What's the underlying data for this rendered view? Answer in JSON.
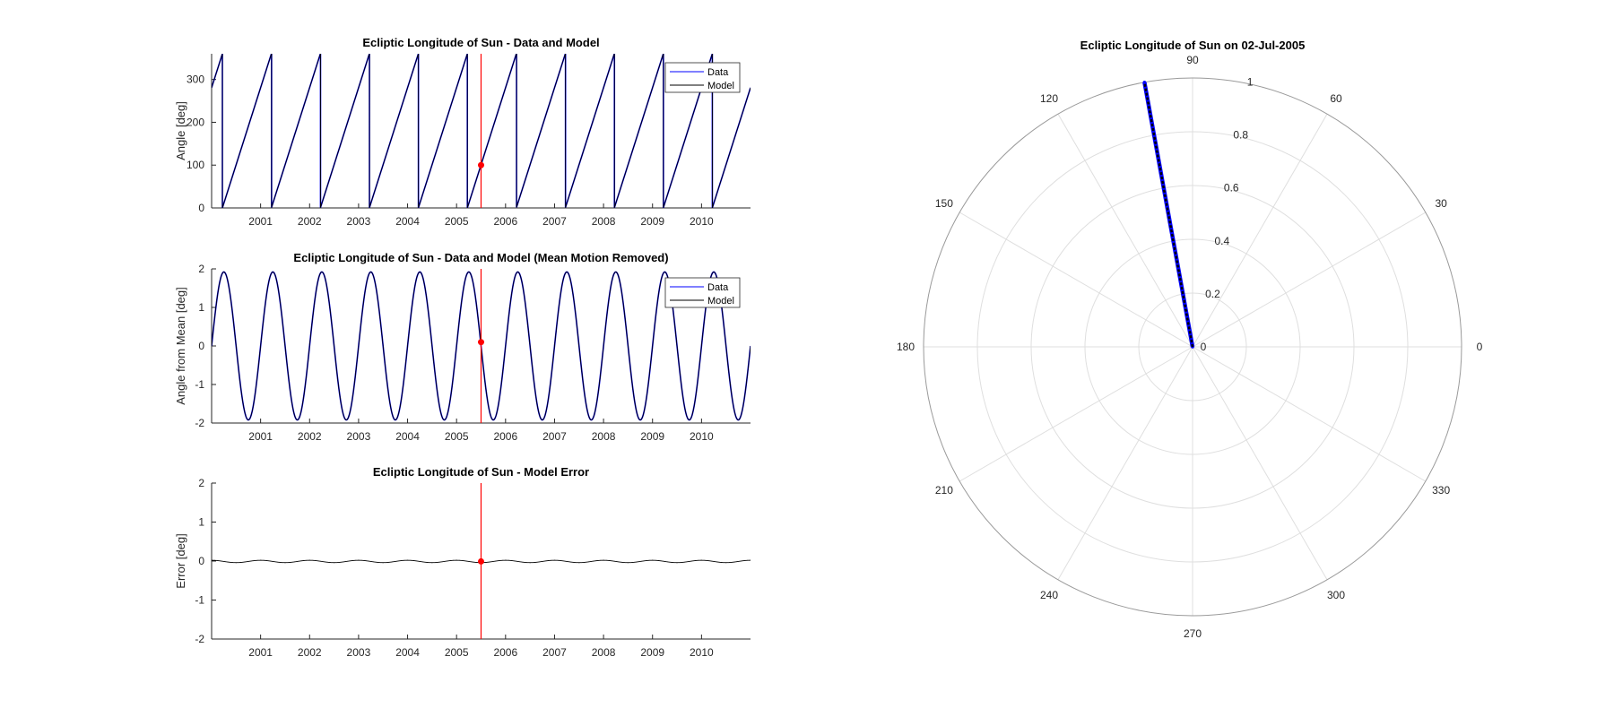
{
  "colors": {
    "data": "#0000ff",
    "model": "#000000",
    "marker": "#ff0000",
    "axis": "#262626",
    "grid": "#dfdfdf",
    "polar_circle": "#9a9a9a"
  },
  "chart_data": [
    {
      "id": "longitude",
      "type": "line",
      "title": "Ecliptic Longitude of Sun - Data and Model",
      "xlabel": "",
      "ylabel": "Angle [deg]",
      "xlim": [
        2000.0,
        2011.0
      ],
      "ylim": [
        0,
        360
      ],
      "xticks": [
        2001,
        2002,
        2003,
        2004,
        2005,
        2006,
        2007,
        2008,
        2009,
        2010
      ],
      "xtick_labels": [
        "2001",
        "2002",
        "2003",
        "2004",
        "2005",
        "2006",
        "2007",
        "2008",
        "2009",
        "2010"
      ],
      "yticks": [
        0,
        100,
        200,
        300
      ],
      "ytick_labels": [
        "0",
        "100",
        "200",
        "300"
      ],
      "legend": {
        "location": "top-right",
        "entries": [
          "Data",
          "Model"
        ]
      },
      "series": [
        {
          "name": "Data",
          "color": "data",
          "function": "sawtooth",
          "period_years": 1.0,
          "offset_years": 0.22,
          "range": [
            0,
            360
          ]
        },
        {
          "name": "Model",
          "color": "model",
          "function": "sawtooth",
          "period_years": 1.0,
          "offset_years": 0.22,
          "range": [
            0,
            360
          ]
        }
      ],
      "current_time": 2005.5,
      "current_value": 100
    },
    {
      "id": "residual",
      "type": "line",
      "title": "Ecliptic Longitude of Sun - Data and Model (Mean Motion Removed)",
      "xlabel": "",
      "ylabel": "Angle from Mean [deg]",
      "xlim": [
        2000.0,
        2011.0
      ],
      "ylim": [
        -2,
        2
      ],
      "xticks": [
        2001,
        2002,
        2003,
        2004,
        2005,
        2006,
        2007,
        2008,
        2009,
        2010
      ],
      "xtick_labels": [
        "2001",
        "2002",
        "2003",
        "2004",
        "2005",
        "2006",
        "2007",
        "2008",
        "2009",
        "2010"
      ],
      "yticks": [
        -2,
        -1,
        0,
        1,
        2
      ],
      "ytick_labels": [
        "-2",
        "-1",
        "0",
        "1",
        "2"
      ],
      "legend": {
        "location": "top-right",
        "entries": [
          "Data",
          "Model"
        ]
      },
      "series": [
        {
          "name": "Data",
          "color": "data",
          "function": "sine",
          "amplitude": 1.92,
          "period_years": 1.0,
          "peak_years": 0.25
        },
        {
          "name": "Model",
          "color": "model",
          "function": "sine",
          "amplitude": 1.92,
          "period_years": 1.0,
          "peak_years": 0.25
        }
      ],
      "current_time": 2005.5,
      "current_value": 0.1
    },
    {
      "id": "error",
      "type": "line",
      "title": "Ecliptic Longitude of Sun - Model Error",
      "xlabel": "",
      "ylabel": "Error [deg]",
      "xlim": [
        2000.0,
        2011.0
      ],
      "ylim": [
        -2,
        2
      ],
      "xticks": [
        2001,
        2002,
        2003,
        2004,
        2005,
        2006,
        2007,
        2008,
        2009,
        2010
      ],
      "xtick_labels": [
        "2001",
        "2002",
        "2003",
        "2004",
        "2005",
        "2006",
        "2007",
        "2008",
        "2009",
        "2010"
      ],
      "yticks": [
        -2,
        -1,
        0,
        1,
        2
      ],
      "ytick_labels": [
        "-2",
        "-1",
        "0",
        "1",
        "2"
      ],
      "series": [
        {
          "name": "Error",
          "color": "model",
          "function": "sine",
          "amplitude": 0.03,
          "period_years": 1.0,
          "peak_years": 0.0,
          "mean": -0.01
        }
      ],
      "current_time": 2005.5,
      "current_value": -0.01
    },
    {
      "id": "polar",
      "type": "polar",
      "title": "Ecliptic Longitude of Sun on 02-Jul-2005",
      "theta_ticks": [
        0,
        30,
        60,
        90,
        120,
        150,
        180,
        210,
        240,
        270,
        300,
        330
      ],
      "theta_tick_labels": [
        "0",
        "30",
        "60",
        "90",
        "120",
        "150",
        "180",
        "210",
        "240",
        "270",
        "300",
        "330"
      ],
      "r_ticks": [
        0,
        0.2,
        0.4,
        0.6,
        0.8,
        1
      ],
      "r_tick_labels": [
        "0",
        "0.2",
        "0.4",
        "0.6",
        "0.8",
        "1"
      ],
      "rlim": [
        0,
        1
      ],
      "r_tick_angle_deg": 80,
      "series": [
        {
          "name": "Data",
          "color": "data",
          "angle_deg": 100.3,
          "r_from": 0,
          "r_to": 1,
          "marker": "dot"
        },
        {
          "name": "Model",
          "color": "model",
          "angle_deg": 100.3,
          "r_from": 0,
          "r_to": 1
        }
      ]
    }
  ]
}
